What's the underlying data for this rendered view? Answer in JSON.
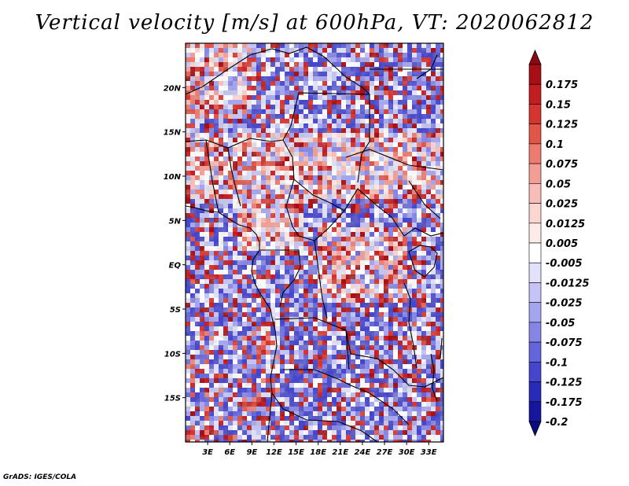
{
  "title": "Vertical velocity [m/s] at 600hPa, VT: 2020062812",
  "credit": "GrADS: IGES/COLA",
  "map": {
    "lon_range": [
      0,
      35
    ],
    "lat_range": [
      -20,
      25
    ],
    "lon_ticks": [
      {
        "value": 3,
        "label": "3E"
      },
      {
        "value": 6,
        "label": "6E"
      },
      {
        "value": 9,
        "label": "9E"
      },
      {
        "value": 12,
        "label": "12E"
      },
      {
        "value": 15,
        "label": "15E"
      },
      {
        "value": 18,
        "label": "18E"
      },
      {
        "value": 21,
        "label": "21E"
      },
      {
        "value": 24,
        "label": "24E"
      },
      {
        "value": 27,
        "label": "27E"
      },
      {
        "value": 30,
        "label": "30E"
      },
      {
        "value": 33,
        "label": "33E"
      }
    ],
    "lat_ticks": [
      {
        "value": 20,
        "label": "20N"
      },
      {
        "value": 15,
        "label": "15N"
      },
      {
        "value": 10,
        "label": "10N"
      },
      {
        "value": 5,
        "label": "5N"
      },
      {
        "value": 0,
        "label": "EQ"
      },
      {
        "value": -5,
        "label": "5S"
      },
      {
        "value": -10,
        "label": "10S"
      },
      {
        "value": -15,
        "label": "15S"
      }
    ]
  },
  "colorbar": {
    "levels": [
      {
        "label": "0.175",
        "color": "#a50f15"
      },
      {
        "label": "0.15",
        "color": "#c31d22"
      },
      {
        "label": "0.125",
        "color": "#d6352f"
      },
      {
        "label": "0.1",
        "color": "#e25549"
      },
      {
        "label": "0.075",
        "color": "#ec7b70"
      },
      {
        "label": "0.05",
        "color": "#f39e95"
      },
      {
        "label": "0.025",
        "color": "#f8bdb6"
      },
      {
        "label": "0.0125",
        "color": "#fbd6d1"
      },
      {
        "label": "0.005",
        "color": "#fdebe8"
      },
      {
        "label": "-0.005",
        "color": "#ffffff"
      },
      {
        "label": "-0.0125",
        "color": "#e2e2fb"
      },
      {
        "label": "-0.025",
        "color": "#c4c4f6"
      },
      {
        "label": "-0.05",
        "color": "#a5a5ef"
      },
      {
        "label": "-0.075",
        "color": "#8585e6"
      },
      {
        "label": "-0.1",
        "color": "#6565db"
      },
      {
        "label": "-0.125",
        "color": "#4646cc"
      },
      {
        "label": "-0.175",
        "color": "#2a2ab8"
      },
      {
        "label": "-0.2",
        "color": "#16169c"
      }
    ],
    "top_color": "#8b0a10",
    "bottom_color": "#0a0a80"
  }
}
